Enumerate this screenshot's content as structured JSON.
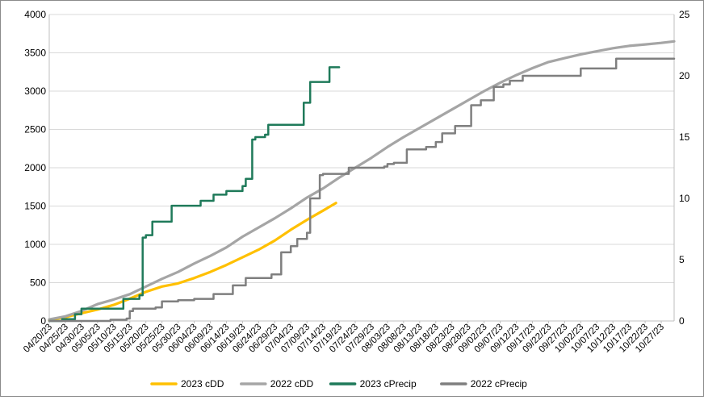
{
  "chart_data": {
    "type": "line",
    "title": "",
    "xlabel": "",
    "ylabel": "",
    "y2label": "",
    "ylim": [
      0,
      4000
    ],
    "y2lim": [
      0,
      25
    ],
    "yticks": [
      0,
      500,
      1000,
      1500,
      2000,
      2500,
      3000,
      3500,
      4000
    ],
    "y2ticks": [
      0,
      5,
      10,
      15,
      20,
      25
    ],
    "xlim": [
      "04/20/23",
      "10/31/23"
    ],
    "x_start": "04/20/23",
    "x_tick_step_days": 5,
    "x_tick_labels": [
      "04/20/23",
      "04/25/23",
      "04/30/23",
      "05/05/23",
      "05/10/23",
      "05/15/23",
      "05/20/23",
      "05/25/23",
      "05/30/23",
      "06/04/23",
      "06/09/23",
      "06/14/23",
      "06/19/23",
      "06/24/23",
      "06/29/23",
      "07/04/23",
      "07/09/23",
      "07/14/23",
      "07/19/23",
      "07/24/23",
      "07/29/23",
      "08/03/23",
      "08/08/23",
      "08/13/23",
      "08/18/23",
      "08/23/23",
      "08/28/23",
      "09/02/23",
      "09/07/23",
      "09/12/23",
      "09/17/23",
      "09/22/23",
      "09/27/23",
      "10/02/23",
      "10/07/23",
      "10/12/23",
      "10/17/23",
      "10/22/23",
      "10/27/23"
    ],
    "grid": {
      "horizontal": true,
      "vertical": false
    },
    "legend_position": "bottom",
    "series": [
      {
        "name": "2023 cDD",
        "axis": "left",
        "color": "#FFC000",
        "step": false,
        "points": [
          [
            "04/20/23",
            10
          ],
          [
            "04/25/23",
            50
          ],
          [
            "04/30/23",
            100
          ],
          [
            "05/05/23",
            150
          ],
          [
            "05/10/23",
            210
          ],
          [
            "05/15/23",
            290
          ],
          [
            "05/20/23",
            380
          ],
          [
            "05/25/23",
            450
          ],
          [
            "05/30/23",
            490
          ],
          [
            "06/04/23",
            560
          ],
          [
            "06/09/23",
            640
          ],
          [
            "06/14/23",
            730
          ],
          [
            "06/19/23",
            830
          ],
          [
            "06/24/23",
            930
          ],
          [
            "06/29/23",
            1050
          ],
          [
            "07/04/23",
            1190
          ],
          [
            "07/09/23",
            1320
          ],
          [
            "07/14/23",
            1440
          ],
          [
            "07/18/23",
            1540
          ]
        ]
      },
      {
        "name": "2022 cDD",
        "axis": "left",
        "color": "#A5A5A5",
        "step": false,
        "points": [
          [
            "04/20/23",
            20
          ],
          [
            "04/25/23",
            60
          ],
          [
            "04/30/23",
            130
          ],
          [
            "05/05/23",
            220
          ],
          [
            "05/10/23",
            280
          ],
          [
            "05/15/23",
            350
          ],
          [
            "05/20/23",
            450
          ],
          [
            "05/25/23",
            550
          ],
          [
            "05/30/23",
            640
          ],
          [
            "06/04/23",
            750
          ],
          [
            "06/09/23",
            850
          ],
          [
            "06/14/23",
            960
          ],
          [
            "06/19/23",
            1100
          ],
          [
            "06/24/23",
            1220
          ],
          [
            "06/29/23",
            1340
          ],
          [
            "07/04/23",
            1470
          ],
          [
            "07/09/23",
            1610
          ],
          [
            "07/14/23",
            1730
          ],
          [
            "07/19/23",
            1870
          ],
          [
            "07/24/23",
            2000
          ],
          [
            "07/29/23",
            2130
          ],
          [
            "08/03/23",
            2270
          ],
          [
            "08/08/23",
            2400
          ],
          [
            "08/13/23",
            2520
          ],
          [
            "08/18/23",
            2640
          ],
          [
            "08/23/23",
            2760
          ],
          [
            "08/28/23",
            2880
          ],
          [
            "09/02/23",
            3000
          ],
          [
            "09/07/23",
            3110
          ],
          [
            "09/12/23",
            3210
          ],
          [
            "09/17/23",
            3300
          ],
          [
            "09/22/23",
            3380
          ],
          [
            "09/27/23",
            3430
          ],
          [
            "10/02/23",
            3480
          ],
          [
            "10/07/23",
            3520
          ],
          [
            "10/12/23",
            3560
          ],
          [
            "10/17/23",
            3590
          ],
          [
            "10/22/23",
            3610
          ],
          [
            "10/27/23",
            3630
          ],
          [
            "10/31/23",
            3650
          ]
        ]
      },
      {
        "name": "2023 cPrecip",
        "axis": "right",
        "color": "#1F7A5A",
        "step": true,
        "points": [
          [
            "04/20/23",
            0
          ],
          [
            "04/24/23",
            0.15
          ],
          [
            "04/28/23",
            0.55
          ],
          [
            "04/30/23",
            1.0
          ],
          [
            "05/13/23",
            1.8
          ],
          [
            "05/18/23",
            2.1
          ],
          [
            "05/19/23",
            6.8
          ],
          [
            "05/20/23",
            7.0
          ],
          [
            "05/22/23",
            8.1
          ],
          [
            "05/28/23",
            9.4
          ],
          [
            "06/06/23",
            9.8
          ],
          [
            "06/10/23",
            10.3
          ],
          [
            "06/14/23",
            10.6
          ],
          [
            "06/19/23",
            11.0
          ],
          [
            "06/20/23",
            11.6
          ],
          [
            "06/22/23",
            14.8
          ],
          [
            "06/23/23",
            15.0
          ],
          [
            "06/26/23",
            15.2
          ],
          [
            "06/27/23",
            16.0
          ],
          [
            "07/08/23",
            17.8
          ],
          [
            "07/10/23",
            19.5
          ],
          [
            "07/16/23",
            20.7
          ],
          [
            "07/19/23",
            20.7
          ]
        ]
      },
      {
        "name": "2022 cPrecip",
        "axis": "right",
        "color": "#7F7F7F",
        "step": true,
        "points": [
          [
            "04/20/23",
            0
          ],
          [
            "05/09/23",
            0.1
          ],
          [
            "05/14/23",
            0.2
          ],
          [
            "05/15/23",
            0.8
          ],
          [
            "05/16/23",
            1.0
          ],
          [
            "05/23/23",
            1.1
          ],
          [
            "05/25/23",
            1.6
          ],
          [
            "05/30/23",
            1.7
          ],
          [
            "06/04/23",
            1.8
          ],
          [
            "06/10/23",
            2.2
          ],
          [
            "06/16/23",
            2.9
          ],
          [
            "06/20/23",
            3.5
          ],
          [
            "06/28/23",
            3.8
          ],
          [
            "07/01/23",
            5.6
          ],
          [
            "07/04/23",
            6.1
          ],
          [
            "07/06/23",
            6.7
          ],
          [
            "07/09/23",
            7.2
          ],
          [
            "07/10/23",
            10.0
          ],
          [
            "07/13/23",
            11.9
          ],
          [
            "07/14/23",
            12.0
          ],
          [
            "07/22/23",
            12.5
          ],
          [
            "08/02/23",
            12.6
          ],
          [
            "08/03/23",
            12.8
          ],
          [
            "08/05/23",
            12.9
          ],
          [
            "08/09/23",
            14.0
          ],
          [
            "08/15/23",
            14.2
          ],
          [
            "08/18/23",
            14.6
          ],
          [
            "08/20/23",
            15.3
          ],
          [
            "08/24/23",
            15.9
          ],
          [
            "08/29/23",
            17.6
          ],
          [
            "09/01/23",
            18.0
          ],
          [
            "09/05/23",
            19.1
          ],
          [
            "09/08/23",
            19.3
          ],
          [
            "09/10/23",
            19.6
          ],
          [
            "09/14/23",
            20.0
          ],
          [
            "10/02/23",
            20.6
          ],
          [
            "10/13/23",
            21.4
          ],
          [
            "10/31/23",
            21.4
          ]
        ]
      }
    ]
  }
}
